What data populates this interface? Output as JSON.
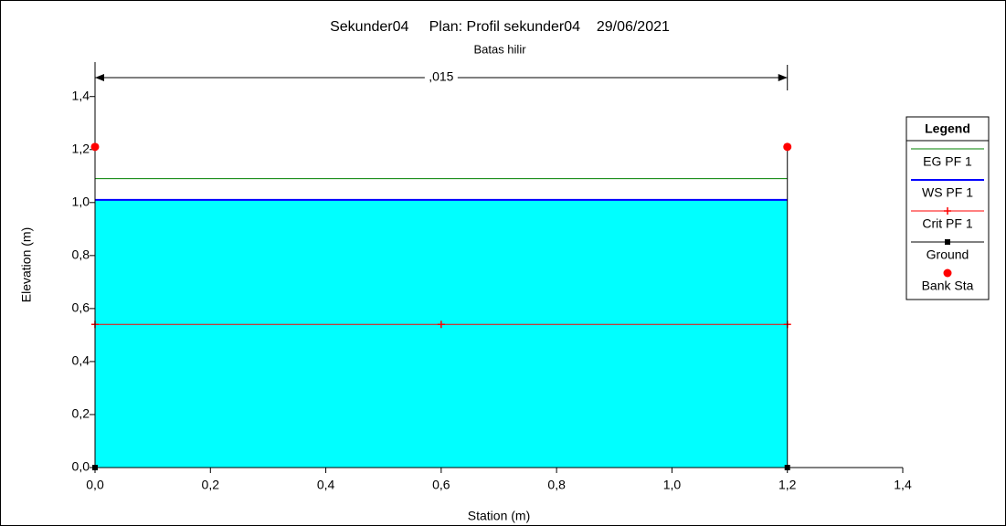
{
  "chart_data": {
    "type": "line",
    "title": "Sekunder04     Plan: Profil sekunder04    29/06/2021",
    "subtitle": "Batas hilir",
    "annotation": ",015",
    "xlabel": "Station (m)",
    "ylabel": "Elevation (m)",
    "legend_title": "Legend",
    "legend": "right",
    "water_color": "#00ffff",
    "xlim": [
      0,
      1.4
    ],
    "ylim": [
      0,
      1.53
    ],
    "xticks": [
      {
        "value": 0,
        "label": "0,0"
      },
      {
        "value": 0.2,
        "label": "0,2"
      },
      {
        "value": 0.4,
        "label": "0,4"
      },
      {
        "value": 0.6,
        "label": "0,6"
      },
      {
        "value": 0.8,
        "label": "0,8"
      },
      {
        "value": 1.0,
        "label": "1,0"
      },
      {
        "value": 1.2,
        "label": "1,2"
      },
      {
        "value": 1.4,
        "label": "1,4"
      }
    ],
    "yticks": [
      {
        "value": 0,
        "label": "0,0"
      },
      {
        "value": 0.2,
        "label": "0,2"
      },
      {
        "value": 0.4,
        "label": "0,4"
      },
      {
        "value": 0.6,
        "label": "0,6"
      },
      {
        "value": 0.8,
        "label": "0,8"
      },
      {
        "value": 1.0,
        "label": "1,0"
      },
      {
        "value": 1.2,
        "label": "1,2"
      },
      {
        "value": 1.4,
        "label": "1,4"
      }
    ],
    "series": [
      {
        "name": "EG PF 1",
        "color": "#008000",
        "marker": "none",
        "x": [
          0,
          1.2
        ],
        "values": [
          1.09,
          1.09
        ]
      },
      {
        "name": "WS PF 1",
        "color": "#0000ff",
        "marker": "none",
        "fill": true,
        "x": [
          0,
          1.2
        ],
        "values": [
          1.01,
          1.01
        ]
      },
      {
        "name": "Crit PF 1",
        "color": "#ff0000",
        "marker": "plus",
        "x": [
          0,
          0.6,
          1.2
        ],
        "values": [
          0.54,
          0.54,
          0.54
        ]
      },
      {
        "name": "Ground",
        "color": "#000000",
        "marker": "square",
        "x": [
          0,
          0,
          1.2,
          1.2
        ],
        "values": [
          1.21,
          0,
          0,
          1.21
        ]
      },
      {
        "name": "Bank Sta",
        "color": "#ff0000",
        "marker": "circle",
        "nolines": true,
        "x": [
          0,
          1.2
        ],
        "values": [
          1.21,
          1.21
        ]
      }
    ]
  }
}
